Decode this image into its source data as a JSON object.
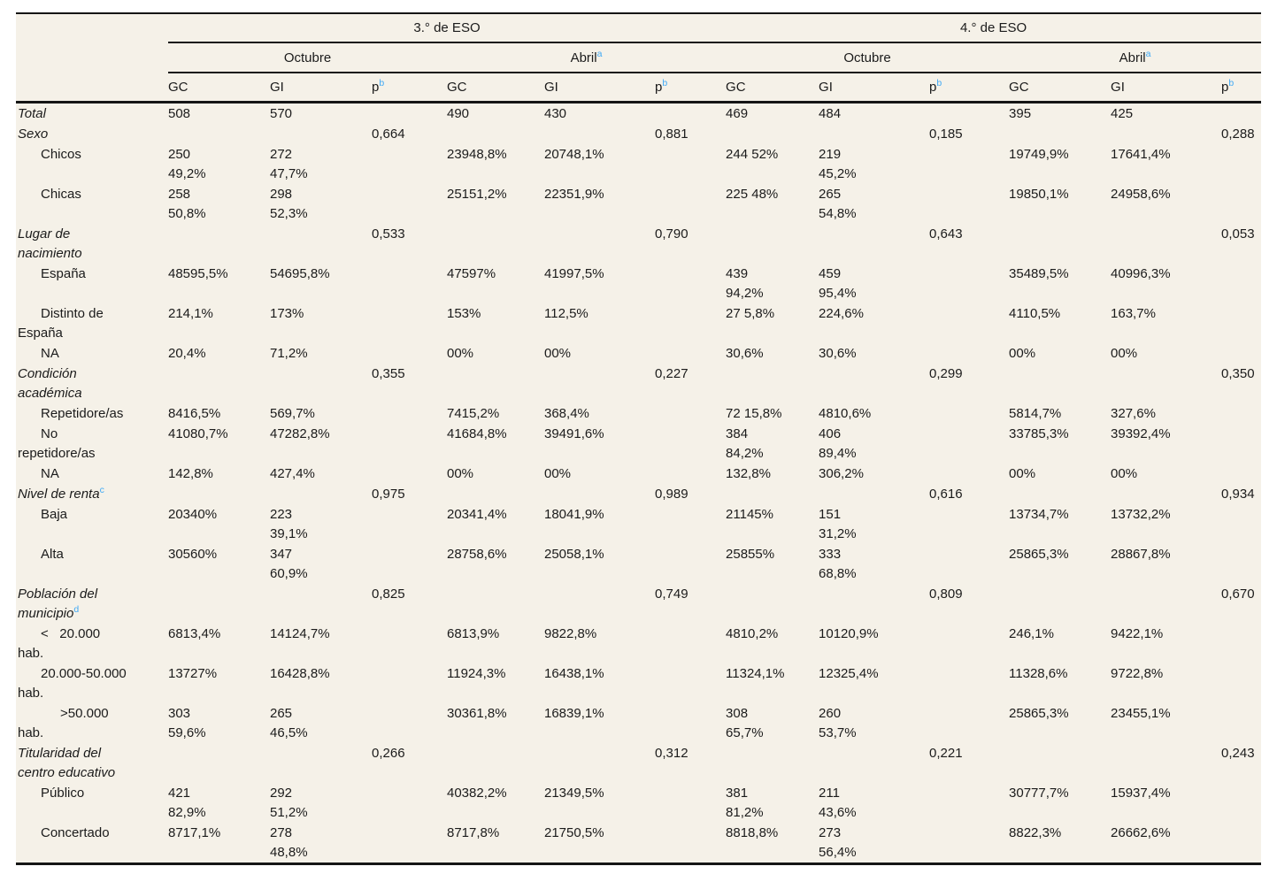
{
  "page": {
    "background": "#ffffff",
    "table_background": "#f5f1e8",
    "text_color": "#1b1b1b",
    "rule_color": "#151515",
    "footnote_marker_color": "#3fa9f5"
  },
  "table": {
    "group_headers": [
      {
        "label": "3.° de ESO"
      },
      {
        "label": "4.° de ESO"
      }
    ],
    "period_headers": [
      {
        "label": "Octubre",
        "sup": ""
      },
      {
        "label": "Abril",
        "sup": "a"
      },
      {
        "label": "Octubre",
        "sup": ""
      },
      {
        "label": "Abril",
        "sup": "a"
      }
    ],
    "col_headers": [
      {
        "label": "GC",
        "sup": ""
      },
      {
        "label": "GI",
        "sup": ""
      },
      {
        "label": "p",
        "sup": "b"
      },
      {
        "label": "GC",
        "sup": ""
      },
      {
        "label": "GI",
        "sup": ""
      },
      {
        "label": "p",
        "sup": "b"
      },
      {
        "label": "GC",
        "sup": ""
      },
      {
        "label": "GI",
        "sup": ""
      },
      {
        "label": "p",
        "sup": "b"
      },
      {
        "label": "GC",
        "sup": ""
      },
      {
        "label": "GI",
        "sup": ""
      },
      {
        "label": "p",
        "sup": "b"
      }
    ],
    "rows": [
      {
        "type": "cat",
        "label": "Total",
        "sup": "",
        "cells": [
          "508",
          "570",
          "",
          "490",
          "430",
          "",
          "469",
          "484",
          "",
          "395",
          "425",
          ""
        ]
      },
      {
        "type": "cat",
        "label": "Sexo",
        "sup": "",
        "cells": [
          "",
          "",
          "0,664",
          "",
          "",
          "0,881",
          "",
          "",
          "0,185",
          "",
          "",
          "0,288"
        ]
      },
      {
        "type": "sub",
        "label": "Chicos",
        "sup": "",
        "cells": [
          "250\n49,2%",
          "272\n47,7%",
          "",
          "23948,8%",
          "20748,1%",
          "",
          "244 52%",
          "219\n45,2%",
          "",
          "19749,9%",
          "17641,4%",
          ""
        ]
      },
      {
        "type": "sub",
        "label": "Chicas",
        "sup": "",
        "cells": [
          "258\n50,8%",
          "298\n52,3%",
          "",
          "25151,2%",
          "22351,9%",
          "",
          "225 48%",
          "265\n54,8%",
          "",
          "19850,1%",
          "24958,6%",
          ""
        ]
      },
      {
        "type": "cat",
        "label": "Lugar de\nnacimiento",
        "sup": "",
        "cells": [
          "",
          "",
          "0,533",
          "",
          "",
          "0,790",
          "",
          "",
          "0,643",
          "",
          "",
          "0,053"
        ]
      },
      {
        "type": "sub",
        "label": "España",
        "sup": "",
        "cells": [
          "48595,5%",
          "54695,8%",
          "",
          "47597%",
          "41997,5%",
          "",
          "439\n94,2%",
          "459\n95,4%",
          "",
          "35489,5%",
          "40996,3%",
          ""
        ]
      },
      {
        "type": "sub",
        "label": "Distinto de\nEspaña",
        "sup": "",
        "cells": [
          "214,1%",
          "173%",
          "",
          "153%",
          "112,5%",
          "",
          "27 5,8%",
          "224,6%",
          "",
          "4110,5%",
          "163,7%",
          ""
        ]
      },
      {
        "type": "sub",
        "label": "NA",
        "sup": "",
        "cells": [
          "20,4%",
          "71,2%",
          "",
          "00%",
          "00%",
          "",
          "30,6%",
          "30,6%",
          "",
          "00%",
          "00%",
          ""
        ]
      },
      {
        "type": "cat",
        "label": "Condición\nacadémica",
        "sup": "",
        "cells": [
          "",
          "",
          "0,355",
          "",
          "",
          "0,227",
          "",
          "",
          "0,299",
          "",
          "",
          "0,350"
        ]
      },
      {
        "type": "sub",
        "label": "Repetidore/as",
        "sup": "",
        "cells": [
          "8416,5%",
          "569,7%",
          "",
          "7415,2%",
          "368,4%",
          "",
          "72 15,8%",
          "4810,6%",
          "",
          "5814,7%",
          "327,6%",
          ""
        ]
      },
      {
        "type": "sub",
        "label": "No\nrepetidore/as",
        "sup": "",
        "cells": [
          "41080,7%",
          "47282,8%",
          "",
          "41684,8%",
          "39491,6%",
          "",
          "384\n84,2%",
          "406\n89,4%",
          "",
          "33785,3%",
          "39392,4%",
          ""
        ]
      },
      {
        "type": "sub",
        "label": "NA",
        "sup": "",
        "cells": [
          "142,8%",
          "427,4%",
          "",
          "00%",
          "00%",
          "",
          "132,8%",
          "306,2%",
          "",
          "00%",
          "00%",
          ""
        ]
      },
      {
        "type": "cat",
        "label": "Nivel de renta",
        "sup": "c",
        "cells": [
          "",
          "",
          "0,975",
          "",
          "",
          "0,989",
          "",
          "",
          "0,616",
          "",
          "",
          "0,934"
        ]
      },
      {
        "type": "sub",
        "label": "Baja",
        "sup": "",
        "cells": [
          "20340%",
          "223\n39,1%",
          "",
          "20341,4%",
          "18041,9%",
          "",
          "21145%",
          "151\n31,2%",
          "",
          "13734,7%",
          "13732,2%",
          ""
        ]
      },
      {
        "type": "sub",
        "label": "Alta",
        "sup": "",
        "cells": [
          "30560%",
          "347\n60,9%",
          "",
          "28758,6%",
          "25058,1%",
          "",
          "25855%",
          "333\n68,8%",
          "",
          "25865,3%",
          "28867,8%",
          ""
        ]
      },
      {
        "type": "cat",
        "label": "Población del\nmunicipio",
        "sup": "d",
        "cells": [
          "",
          "",
          "0,825",
          "",
          "",
          "0,749",
          "",
          "",
          "0,809",
          "",
          "",
          "0,670"
        ]
      },
      {
        "type": "sub",
        "label": "<   20.000\nhab.",
        "sup": "",
        "cells": [
          "6813,4%",
          "14124,7%",
          "",
          "6813,9%",
          "9822,8%",
          "",
          "4810,2%",
          "10120,9%",
          "",
          "246,1%",
          "9422,1%",
          ""
        ]
      },
      {
        "type": "sub",
        "label": "20.000-50.000\nhab.",
        "sup": "",
        "cells": [
          "13727%",
          "16428,8%",
          "",
          "11924,3%",
          "16438,1%",
          "",
          "11324,1%",
          "12325,4%",
          "",
          "11328,6%",
          "9722,8%",
          ""
        ]
      },
      {
        "type": "sub2",
        "label": ">50.000\nhab.",
        "sup": "",
        "cells": [
          "303\n59,6%",
          "265\n46,5%",
          "",
          "30361,8%",
          "16839,1%",
          "",
          "308\n65,7%",
          "260\n53,7%",
          "",
          "25865,3%",
          "23455,1%",
          ""
        ]
      },
      {
        "type": "cat",
        "label": "Titularidad del\ncentro educativo",
        "sup": "",
        "cells": [
          "",
          "",
          "0,266",
          "",
          "",
          "0,312",
          "",
          "",
          "0,221",
          "",
          "",
          "0,243"
        ]
      },
      {
        "type": "sub",
        "label": "Público",
        "sup": "",
        "cells": [
          "421\n82,9%",
          "292\n51,2%",
          "",
          "40382,2%",
          "21349,5%",
          "",
          "381\n81,2%",
          "211\n43,6%",
          "",
          "30777,7%",
          "15937,4%",
          ""
        ]
      },
      {
        "type": "sub",
        "label": "Concertado",
        "sup": "",
        "cells": [
          "8717,1%",
          "278\n48,8%",
          "",
          "8717,8%",
          "21750,5%",
          "",
          "8818,8%",
          "273\n56,4%",
          "",
          "8822,3%",
          "26662,6%",
          ""
        ]
      }
    ]
  }
}
